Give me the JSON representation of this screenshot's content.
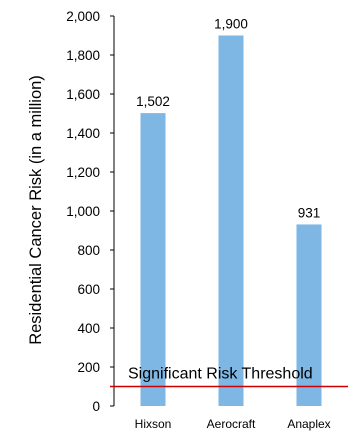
{
  "chart_data": {
    "type": "bar",
    "title": "",
    "xlabel": "",
    "ylabel": "Residential Cancer Risk (in a million)",
    "categories": [
      "Hixson",
      "Aerocraft",
      "Anaplex"
    ],
    "values": [
      1502,
      1900,
      931
    ],
    "value_labels": [
      "1,502",
      "1,900",
      "931"
    ],
    "ylim": [
      0,
      2000
    ],
    "yticks": [
      0,
      200,
      400,
      600,
      800,
      1000,
      1200,
      1400,
      1600,
      1800,
      2000
    ],
    "ytick_labels": [
      "0",
      "200",
      "400",
      "600",
      "800",
      "1,000",
      "1,200",
      "1,400",
      "1,600",
      "1,800",
      "2,000"
    ],
    "grid": false,
    "bar_color": "#7eb6e4",
    "threshold": {
      "value": 100,
      "label": "Significant Risk Threshold",
      "color": "#cc0000"
    }
  }
}
